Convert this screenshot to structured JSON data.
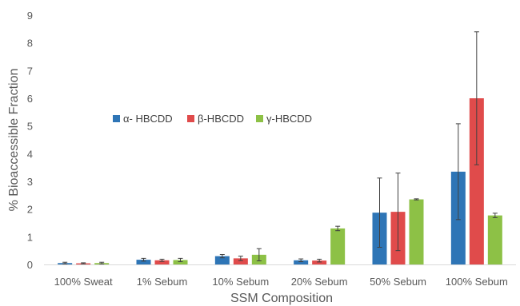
{
  "chart_data": {
    "type": "bar",
    "title": "",
    "xlabel": "SSM Composition",
    "ylabel": "% Bioaccessible Fraction",
    "ylim": [
      0,
      9
    ],
    "yticks": [
      0,
      1,
      2,
      3,
      4,
      5,
      6,
      7,
      8,
      9
    ],
    "grid": false,
    "legend_position": "center-left",
    "categories": [
      "100% Sweat",
      "1% Sebum",
      "10% Sebum",
      "20% Sebum",
      "50% Sebum",
      "100% Sebum"
    ],
    "series": [
      {
        "name": "α- HBCDD",
        "color": "#2E75B6",
        "values": [
          0.05,
          0.17,
          0.3,
          0.15,
          1.87,
          3.35
        ],
        "errors": [
          0.03,
          0.05,
          0.06,
          0.05,
          1.25,
          1.73
        ]
      },
      {
        "name": "β-HBCDD",
        "color": "#E04B4B",
        "values": [
          0.04,
          0.15,
          0.22,
          0.14,
          1.9,
          6.0
        ],
        "errors": [
          0.02,
          0.04,
          0.08,
          0.05,
          1.4,
          2.4
        ]
      },
      {
        "name": "γ-HBCDD",
        "color": "#8DC146",
        "values": [
          0.05,
          0.16,
          0.35,
          1.3,
          2.35,
          1.77
        ],
        "errors": [
          0.03,
          0.06,
          0.22,
          0.08,
          0.02,
          0.08
        ]
      }
    ]
  }
}
